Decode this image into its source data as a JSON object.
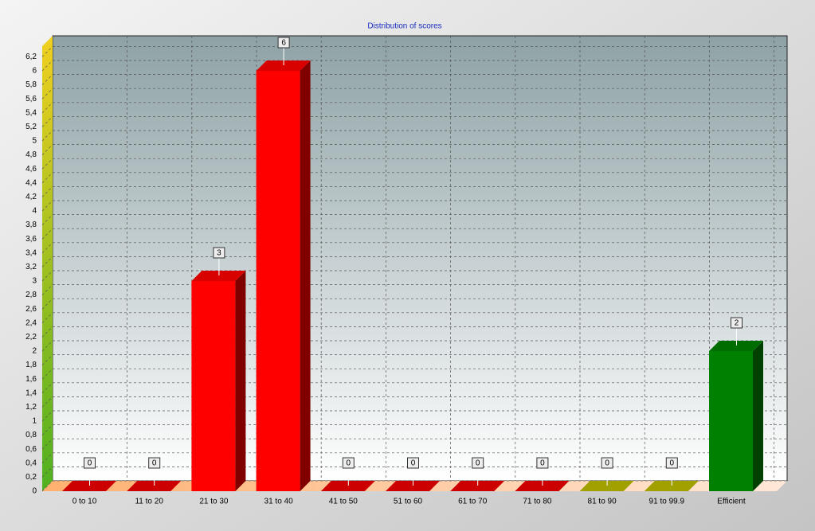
{
  "chart_data": {
    "type": "bar3d",
    "title": "Distribution of scores",
    "categories": [
      "0 to 10",
      "11 to 20",
      "21 to 30",
      "31 to 40",
      "41 to 50",
      "51 to 60",
      "61 to 70",
      "71 to 80",
      "81 to 90",
      "91 to 99.9",
      "Efficient"
    ],
    "values": [
      0,
      0,
      3,
      6,
      0,
      0,
      0,
      0,
      0,
      0,
      2
    ],
    "colors": [
      "#ff0000",
      "#ff0000",
      "#ff0000",
      "#ff0000",
      "#ff0000",
      "#ff0000",
      "#ff0000",
      "#ff0000",
      "#c8c800",
      "#c8c800",
      "#008000"
    ],
    "ylim": [
      0,
      6.5
    ],
    "yticks": [
      0,
      {
        "value": 0.2,
        "label": "0,2"
      },
      {
        "value": 0.4,
        "label": "0,4"
      },
      {
        "value": 0.6,
        "label": "0,6"
      },
      {
        "value": 0.8,
        "label": "0,8"
      },
      1,
      {
        "value": 1.2,
        "label": "1,2"
      },
      {
        "value": 1.4,
        "label": "1,4"
      },
      {
        "value": 1.6,
        "label": "1,6"
      },
      {
        "value": 1.8,
        "label": "1,8"
      },
      2,
      {
        "value": 2.2,
        "label": "2,2"
      },
      {
        "value": 2.4,
        "label": "2,4"
      },
      {
        "value": 2.6,
        "label": "2,6"
      },
      {
        "value": 2.8,
        "label": "2,8"
      },
      3,
      {
        "value": 3.2,
        "label": "3,2"
      },
      {
        "value": 3.4,
        "label": "3,4"
      },
      {
        "value": 3.6,
        "label": "3,6"
      },
      {
        "value": 3.8,
        "label": "3,8"
      },
      4,
      {
        "value": 4.2,
        "label": "4,2"
      },
      {
        "value": 4.4,
        "label": "4,4"
      },
      {
        "value": 4.6,
        "label": "4,6"
      },
      {
        "value": 4.8,
        "label": "4,8"
      },
      5,
      {
        "value": 5.2,
        "label": "5,2"
      },
      {
        "value": 5.4,
        "label": "5,4"
      },
      {
        "value": 5.6,
        "label": "5,6"
      },
      {
        "value": 5.8,
        "label": "5,8"
      },
      6,
      {
        "value": 6.2,
        "label": "6,2"
      }
    ],
    "grid": true
  }
}
